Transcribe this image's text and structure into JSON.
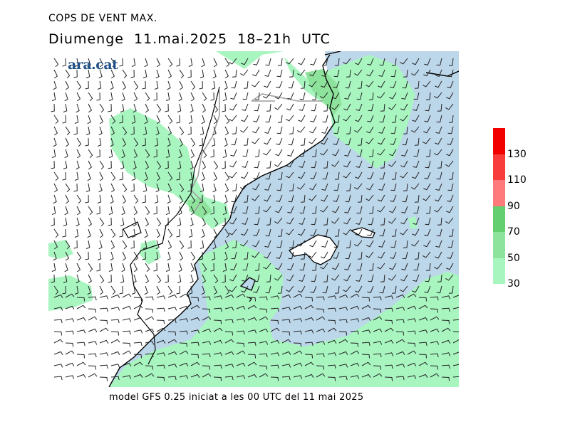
{
  "title_line1": "COPS DE VENT MAX.",
  "title_line2": "Diumenge  11.mai.2025  18–21h  UTC",
  "logo_text": "ara.cat",
  "footer": "model GFS 0.25 iniciat a les 00 UTC del 11 mai 2025",
  "legend": [
    {
      "label": "30",
      "color": "#a8f5c0"
    },
    {
      "label": "50",
      "color": "#8ee39c"
    },
    {
      "label": "70",
      "color": "#63cf6e"
    },
    {
      "label": "90",
      "color": "#ff7a7a"
    },
    {
      "label": "110",
      "color": "#f83c3c"
    },
    {
      "label": "130",
      "color": "#f20000"
    }
  ],
  "colors": {
    "sea": "#bcd6ea",
    "wind_30": "#a8f5c0",
    "wind_50": "#8ee39c",
    "land": "#ffffff",
    "coast": "#000000",
    "border": "#9e9e9e"
  }
}
